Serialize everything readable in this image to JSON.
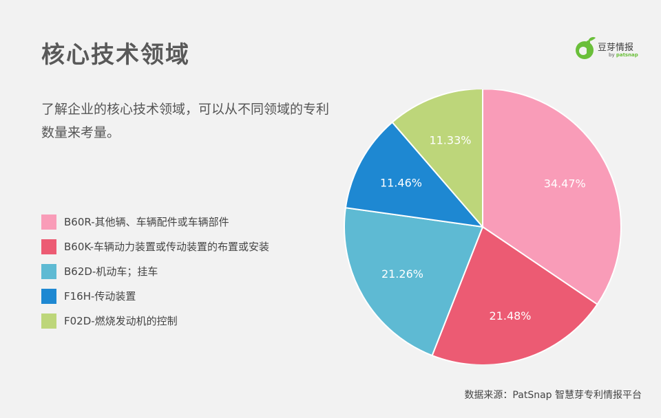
{
  "page": {
    "title": "核心技术领域",
    "description": "了解企业的核心技术领域，可以从不同领域的专利数量来考量。",
    "source": "数据来源：PatSnap 智慧芽专利情报平台"
  },
  "logo": {
    "name": "豆芽情报",
    "by": "by",
    "brand": "patsnap"
  },
  "colors": {
    "background": "#f2f2f2",
    "logo_green": "#6abf3a"
  },
  "chart_data": {
    "type": "pie",
    "legend_position": "left",
    "slices": [
      {
        "label": "B60R-其他辆、车辆配件或车辆部件",
        "value": 34.47,
        "display": "34.47%",
        "color": "#f99cb8"
      },
      {
        "label": "B60K-车辆动力装置或传动装置的布置或安装",
        "value": 21.48,
        "display": "21.48%",
        "color": "#ec5b73"
      },
      {
        "label": "B62D-机动车；挂车",
        "value": 21.26,
        "display": "21.26%",
        "color": "#5ebad3"
      },
      {
        "label": "F16H-传动装置",
        "value": 11.46,
        "display": "11.46%",
        "color": "#1e88d2"
      },
      {
        "label": "F02D-燃烧发动机的控制",
        "value": 11.33,
        "display": "11.33%",
        "color": "#bdd67a"
      }
    ]
  }
}
